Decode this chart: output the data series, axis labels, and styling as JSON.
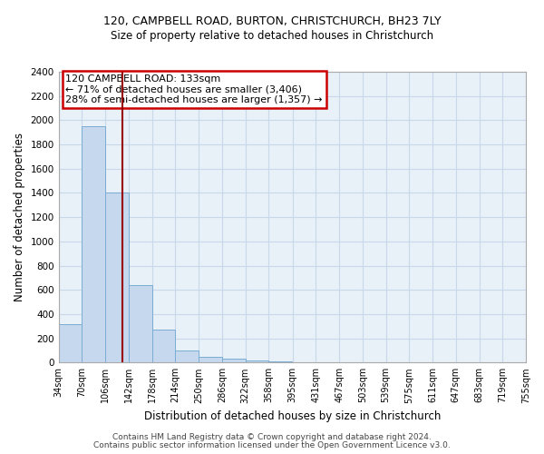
{
  "title1": "120, CAMPBELL ROAD, BURTON, CHRISTCHURCH, BH23 7LY",
  "title2": "Size of property relative to detached houses in Christchurch",
  "xlabel": "Distribution of detached houses by size in Christchurch",
  "ylabel": "Number of detached properties",
  "bar_color": "#c5d8ee",
  "bar_edge_color": "#7aadd4",
  "bin_edges": [
    34,
    70,
    106,
    142,
    178,
    214,
    250,
    286,
    322,
    358,
    395,
    431,
    467,
    503,
    539,
    575,
    611,
    647,
    683,
    719,
    755
  ],
  "bar_heights": [
    320,
    1950,
    1400,
    640,
    270,
    100,
    50,
    35,
    20,
    10,
    5,
    3,
    2,
    2,
    1,
    1,
    1,
    1,
    1,
    1
  ],
  "property_size": 133,
  "annotation_title": "120 CAMPBELL ROAD: 133sqm",
  "annotation_line1": "← 71% of detached houses are smaller (3,406)",
  "annotation_line2": "28% of semi-detached houses are larger (1,357) →",
  "red_line_color": "#990000",
  "annotation_box_color": "#ffffff",
  "annotation_box_edge": "#cc0000",
  "ylim": [
    0,
    2400
  ],
  "yticks": [
    0,
    200,
    400,
    600,
    800,
    1000,
    1200,
    1400,
    1600,
    1800,
    2000,
    2200,
    2400
  ],
  "grid_color": "#c8d8e8",
  "background_color": "#e8f0f8",
  "footer1": "Contains HM Land Registry data © Crown copyright and database right 2024.",
  "footer2": "Contains public sector information licensed under the Open Government Licence v3.0."
}
